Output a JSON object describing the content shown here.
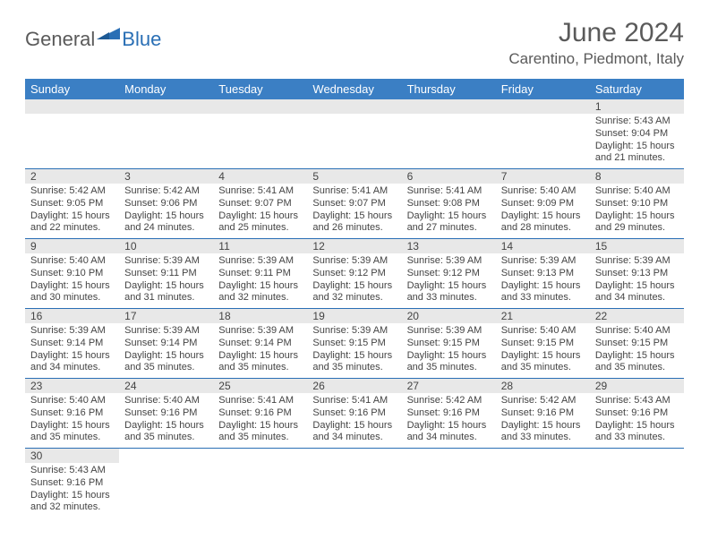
{
  "brand": {
    "part1": "General",
    "part2": "Blue"
  },
  "title": "June 2024",
  "location": "Carentino, Piedmont, Italy",
  "colors": {
    "header_bg": "#3b7fc4",
    "header_text": "#ffffff",
    "border": "#2a6fb5",
    "daynum_bg": "#e8e8e8",
    "text": "#444444",
    "title_text": "#5a5a5a",
    "brand_blue": "#2a6fb5"
  },
  "weekdays": [
    "Sunday",
    "Monday",
    "Tuesday",
    "Wednesday",
    "Thursday",
    "Friday",
    "Saturday"
  ],
  "weeks": [
    [
      null,
      null,
      null,
      null,
      null,
      null,
      {
        "n": "1",
        "sr": "5:43 AM",
        "ss": "9:04 PM",
        "dlh": "15",
        "dlm": "21"
      }
    ],
    [
      {
        "n": "2",
        "sr": "5:42 AM",
        "ss": "9:05 PM",
        "dlh": "15",
        "dlm": "22"
      },
      {
        "n": "3",
        "sr": "5:42 AM",
        "ss": "9:06 PM",
        "dlh": "15",
        "dlm": "24"
      },
      {
        "n": "4",
        "sr": "5:41 AM",
        "ss": "9:07 PM",
        "dlh": "15",
        "dlm": "25"
      },
      {
        "n": "5",
        "sr": "5:41 AM",
        "ss": "9:07 PM",
        "dlh": "15",
        "dlm": "26"
      },
      {
        "n": "6",
        "sr": "5:41 AM",
        "ss": "9:08 PM",
        "dlh": "15",
        "dlm": "27"
      },
      {
        "n": "7",
        "sr": "5:40 AM",
        "ss": "9:09 PM",
        "dlh": "15",
        "dlm": "28"
      },
      {
        "n": "8",
        "sr": "5:40 AM",
        "ss": "9:10 PM",
        "dlh": "15",
        "dlm": "29"
      }
    ],
    [
      {
        "n": "9",
        "sr": "5:40 AM",
        "ss": "9:10 PM",
        "dlh": "15",
        "dlm": "30"
      },
      {
        "n": "10",
        "sr": "5:39 AM",
        "ss": "9:11 PM",
        "dlh": "15",
        "dlm": "31"
      },
      {
        "n": "11",
        "sr": "5:39 AM",
        "ss": "9:11 PM",
        "dlh": "15",
        "dlm": "32"
      },
      {
        "n": "12",
        "sr": "5:39 AM",
        "ss": "9:12 PM",
        "dlh": "15",
        "dlm": "32"
      },
      {
        "n": "13",
        "sr": "5:39 AM",
        "ss": "9:12 PM",
        "dlh": "15",
        "dlm": "33"
      },
      {
        "n": "14",
        "sr": "5:39 AM",
        "ss": "9:13 PM",
        "dlh": "15",
        "dlm": "33"
      },
      {
        "n": "15",
        "sr": "5:39 AM",
        "ss": "9:13 PM",
        "dlh": "15",
        "dlm": "34"
      }
    ],
    [
      {
        "n": "16",
        "sr": "5:39 AM",
        "ss": "9:14 PM",
        "dlh": "15",
        "dlm": "34"
      },
      {
        "n": "17",
        "sr": "5:39 AM",
        "ss": "9:14 PM",
        "dlh": "15",
        "dlm": "35"
      },
      {
        "n": "18",
        "sr": "5:39 AM",
        "ss": "9:14 PM",
        "dlh": "15",
        "dlm": "35"
      },
      {
        "n": "19",
        "sr": "5:39 AM",
        "ss": "9:15 PM",
        "dlh": "15",
        "dlm": "35"
      },
      {
        "n": "20",
        "sr": "5:39 AM",
        "ss": "9:15 PM",
        "dlh": "15",
        "dlm": "35"
      },
      {
        "n": "21",
        "sr": "5:40 AM",
        "ss": "9:15 PM",
        "dlh": "15",
        "dlm": "35"
      },
      {
        "n": "22",
        "sr": "5:40 AM",
        "ss": "9:15 PM",
        "dlh": "15",
        "dlm": "35"
      }
    ],
    [
      {
        "n": "23",
        "sr": "5:40 AM",
        "ss": "9:16 PM",
        "dlh": "15",
        "dlm": "35"
      },
      {
        "n": "24",
        "sr": "5:40 AM",
        "ss": "9:16 PM",
        "dlh": "15",
        "dlm": "35"
      },
      {
        "n": "25",
        "sr": "5:41 AM",
        "ss": "9:16 PM",
        "dlh": "15",
        "dlm": "35"
      },
      {
        "n": "26",
        "sr": "5:41 AM",
        "ss": "9:16 PM",
        "dlh": "15",
        "dlm": "34"
      },
      {
        "n": "27",
        "sr": "5:42 AM",
        "ss": "9:16 PM",
        "dlh": "15",
        "dlm": "34"
      },
      {
        "n": "28",
        "sr": "5:42 AM",
        "ss": "9:16 PM",
        "dlh": "15",
        "dlm": "33"
      },
      {
        "n": "29",
        "sr": "5:43 AM",
        "ss": "9:16 PM",
        "dlh": "15",
        "dlm": "33"
      }
    ],
    [
      {
        "n": "30",
        "sr": "5:43 AM",
        "ss": "9:16 PM",
        "dlh": "15",
        "dlm": "32"
      },
      null,
      null,
      null,
      null,
      null,
      null
    ]
  ],
  "labels": {
    "sunrise": "Sunrise:",
    "sunset": "Sunset:",
    "daylight": "Daylight:",
    "hours": "hours",
    "and": "and",
    "minutes": "minutes."
  }
}
